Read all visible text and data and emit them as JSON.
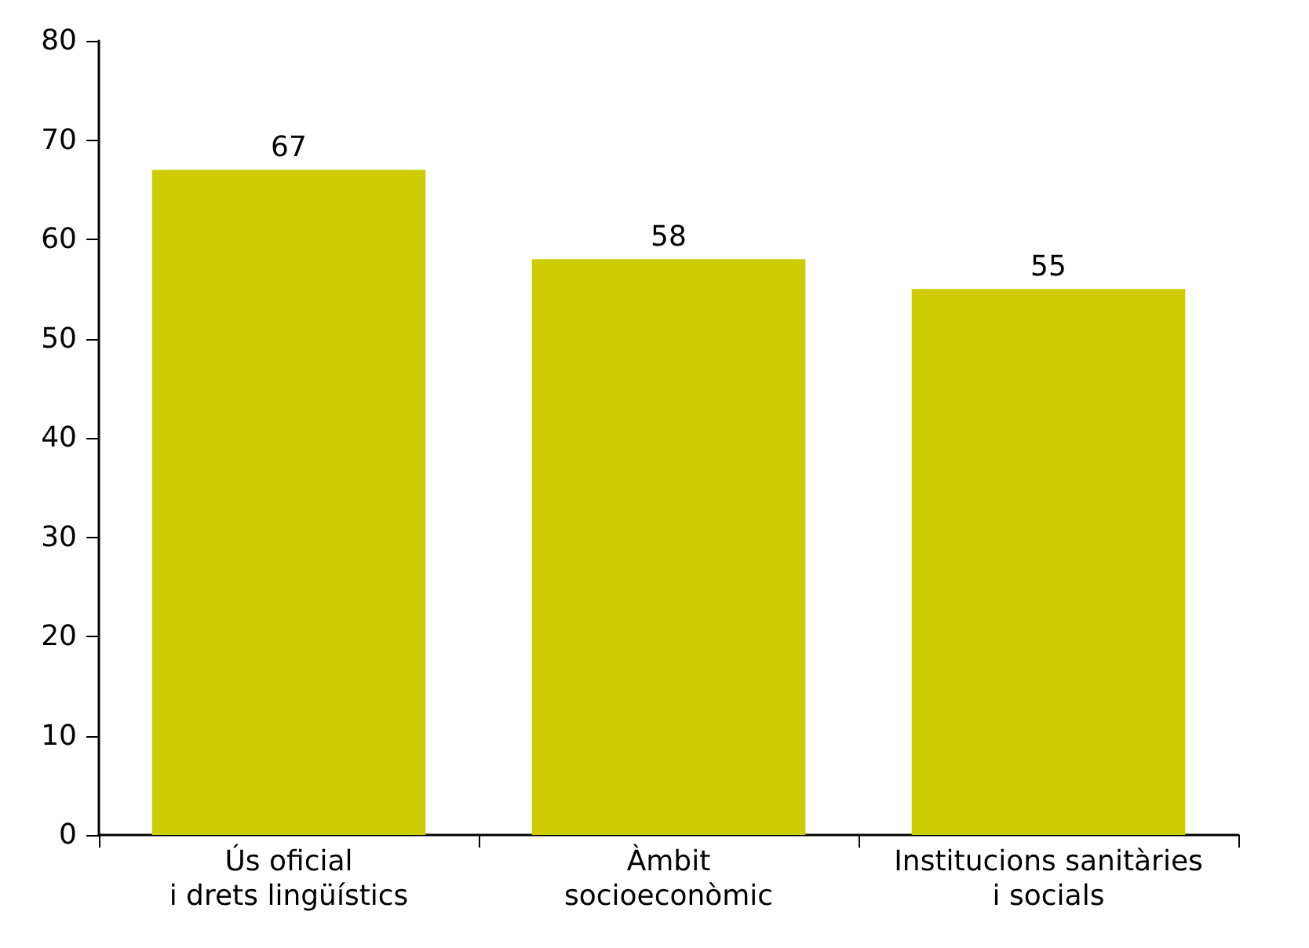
{
  "chart_data": {
    "type": "bar",
    "categories": [
      "Ús oficial\ni drets lingüístics",
      "Àmbit\nsocioeconòmic",
      "Institucions sanitàries\ni socials"
    ],
    "values": [
      67,
      58,
      55
    ],
    "color": "#cccc00",
    "ylim": [
      0,
      80
    ],
    "yticks": [
      0,
      10,
      20,
      30,
      40,
      50,
      60,
      70,
      80
    ],
    "grid": false,
    "data_labels": true
  }
}
